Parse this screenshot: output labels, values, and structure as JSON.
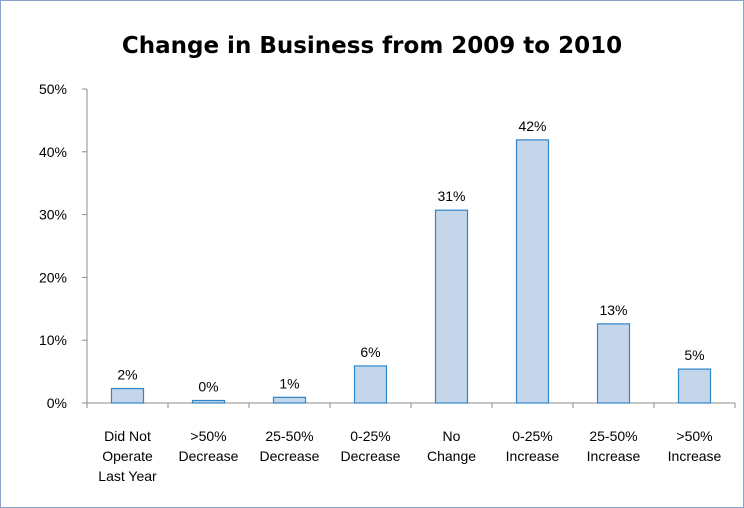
{
  "chart_data": {
    "type": "bar",
    "title": "Change in Business from 2009 to 2010",
    "categories": [
      [
        "Did Not",
        "Operate",
        "Last Year"
      ],
      [
        ">50%",
        "Decrease"
      ],
      [
        "25-50%",
        "Decrease"
      ],
      [
        "0-25%",
        "Decrease"
      ],
      [
        "No",
        "Change"
      ],
      [
        "0-25%",
        "Increase"
      ],
      [
        "25-50%",
        "Increase"
      ],
      [
        ">50%",
        "Increase"
      ]
    ],
    "values": [
      2.3,
      0.4,
      0.9,
      5.9,
      30.7,
      41.9,
      12.6,
      5.4
    ],
    "data_labels": [
      "2%",
      "0%",
      "1%",
      "6%",
      "31%",
      "42%",
      "13%",
      "5%"
    ],
    "ylim": [
      0,
      50
    ],
    "yticks": [
      0,
      10,
      20,
      30,
      40,
      50
    ],
    "ytick_labels": [
      "0%",
      "10%",
      "20%",
      "30%",
      "40%",
      "50%"
    ],
    "xlabel": "",
    "ylabel": "",
    "grid": false,
    "bar_color": "#c5d6ea",
    "bar_edge_color": "#2e86c9",
    "axis_color": "#8c8c8c"
  }
}
